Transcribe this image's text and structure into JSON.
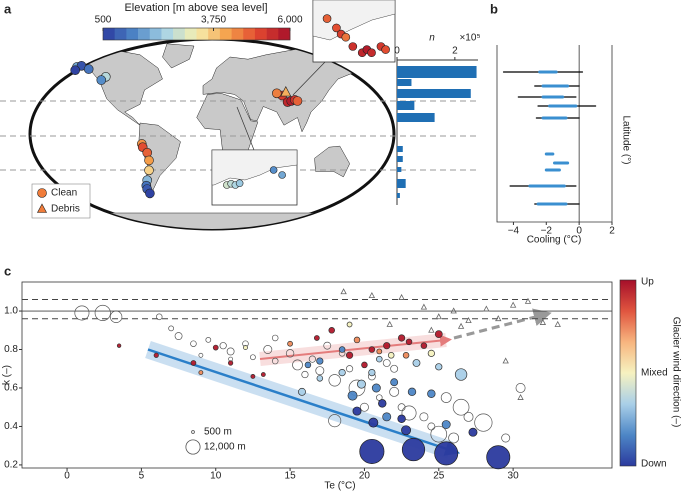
{
  "panel_labels": [
    "a",
    "b",
    "c"
  ],
  "chart_data": [
    {
      "type": "map",
      "title": "Elevation [m above sea level]",
      "clim": [
        500,
        6000
      ],
      "cticks": [
        500,
        {
          "value": 3750,
          "label": "3,750"
        },
        {
          "value": 6000,
          "label": "6,000"
        }
      ],
      "series": [
        {
          "name": "Clean",
          "marker": "circle",
          "inset": "world",
          "x": [
            -150,
            -145,
            -137,
            -152,
            -118,
            -123,
            78,
            84,
            88,
            92,
            95,
            72,
            -78,
            -77,
            -72,
            -70,
            -70,
            -72,
            -73,
            -72,
            -69
          ],
          "y": [
            61,
            62,
            59,
            58,
            52,
            49,
            35,
            29,
            30,
            31,
            30,
            37,
            -9,
            -12,
            -17,
            -24,
            -33,
            -42,
            -47,
            -50,
            -54
          ],
          "elevation": [
            1800,
            800,
            1200,
            600,
            2500,
            1500,
            5200,
            5600,
            5800,
            5400,
            4800,
            4500,
            4300,
            5000,
            4800,
            4200,
            3600,
            2000,
            1200,
            900,
            600
          ]
        },
        {
          "name": "Debris",
          "marker": "triangle",
          "inset": "world",
          "x": [
            82
          ],
          "y": [
            38
          ],
          "elevation": [
            4000
          ]
        },
        {
          "marker": "circle",
          "inset": "asia",
          "x": [
            71,
            75,
            77,
            79,
            82,
            86,
            88,
            90,
            94,
            96
          ],
          "y": [
            39,
            36,
            34,
            33,
            30,
            28,
            29,
            28,
            30,
            29
          ],
          "elevation": [
            4800,
            5000,
            5200,
            4600,
            5400,
            5600,
            5800,
            5500,
            5300,
            5000
          ]
        },
        {
          "marker": "circle",
          "inset": "europe",
          "x": [
            7,
            9,
            11,
            13,
            29,
            33
          ],
          "y": [
            46,
            46.5,
            46,
            46.7,
            52,
            50
          ],
          "elevation": [
            2800,
            2600,
            2400,
            2200,
            1500,
            1800
          ]
        }
      ]
    },
    {
      "type": "barh",
      "xlabel": "n",
      "x_multiplier": "×10⁵",
      "xlim": [
        0,
        2.8
      ],
      "xticks": [
        0,
        2
      ],
      "color": "#1f6fb4",
      "categories": [
        null,
        null,
        null,
        null,
        null,
        null,
        null,
        null,
        null,
        null
      ],
      "values": [
        2.75,
        0.5,
        2.55,
        0.6,
        1.3,
        0.2,
        0.2,
        0.15,
        0.3,
        0.1
      ]
    },
    {
      "type": "range",
      "xlabel": "Cooling (°C)",
      "ylabel": "Latitude (°)",
      "xlim": [
        -5,
        2
      ],
      "xticks": [
        {
          "value": -4,
          "label": "−4"
        },
        {
          "value": -2,
          "label": "−2"
        },
        0,
        2
      ],
      "series": [
        {
          "color": "#000000",
          "low": [
            -4.6,
            -2.7,
            -3.7,
            -2.5,
            -2.6,
            null,
            null,
            null,
            -4.2,
            -2.7
          ],
          "high": [
            0.2,
            0,
            -0.2,
            1.0,
            0,
            null,
            null,
            null,
            -0.2,
            0
          ]
        },
        {
          "color": "#3a8fd0",
          "low": [
            -2.4,
            -2.2,
            -2.2,
            -1.8,
            -2.2,
            -2.0,
            -1.5,
            -2.0,
            -3.0,
            -2.5
          ],
          "high": [
            -1.4,
            -0.7,
            -1.0,
            -0.2,
            -0.8,
            -1.6,
            -0.7,
            -1.2,
            -0.9,
            -0.8
          ]
        }
      ]
    },
    {
      "type": "scatter",
      "xlabel": "Te (°C)",
      "ylabel": "k (–)",
      "xlim": [
        -3.03,
        36.65
      ],
      "ylim": [
        0.184,
        1.151
      ],
      "xticks": [
        0,
        5,
        10,
        15,
        20,
        25,
        30
      ],
      "yticks": [
        0.2,
        0.4,
        0.6,
        0.8,
        {
          "value": 1,
          "label": "1.0"
        }
      ],
      "reference_lines": [
        1.06,
        1.0,
        0.96
      ],
      "reference_styles": [
        "dashed",
        "solid",
        "dashed"
      ],
      "colorbar": {
        "title": "Glacier wind direction (–)",
        "labels": [
          "Up",
          "Mixed",
          "Down"
        ],
        "colors": [
          "#a50f2a",
          "#e0553f",
          "#f7b57f",
          "#f6f2c0",
          "#a9cfe8",
          "#4d86c6",
          "#2b3a9e"
        ]
      },
      "size_legend": {
        "values": [
          500,
          12000
        ],
        "value_labels": [
          "500 m",
          "12,000 m"
        ]
      },
      "series": [
        {
          "marker": "circle",
          "color": "none",
          "edgecolor": "#555555",
          "x": [
            1,
            2.4,
            3.3,
            6.2,
            7,
            7.5,
            8.5,
            9.5,
            10.5,
            11,
            12,
            12.5,
            13.5,
            14,
            15,
            15.5,
            16.5,
            17,
            17.5,
            18,
            19,
            19.5,
            20.5,
            21,
            22,
            22.5,
            23,
            24,
            24.5,
            25,
            26,
            26.5,
            27,
            28,
            29.5,
            30.5,
            9,
            11,
            14,
            16,
            18.5,
            20,
            22,
            18,
            21.5,
            25.5
          ],
          "y": [
            0.99,
            0.99,
            0.97,
            0.97,
            0.91,
            0.87,
            0.83,
            0.85,
            0.82,
            0.79,
            0.83,
            0.76,
            0.8,
            0.74,
            0.78,
            0.72,
            0.75,
            0.69,
            0.82,
            0.64,
            0.7,
            0.6,
            0.66,
            0.55,
            0.58,
            0.5,
            0.47,
            0.45,
            0.4,
            0.36,
            0.34,
            0.5,
            0.45,
            0.42,
            0.34,
            0.6,
            0.77,
            0.75,
            0.86,
            0.67,
            0.78,
            0.5,
            0.7,
            0.43,
            0.73,
            0.55
          ],
          "size": [
            12000,
            14000,
            8000,
            2000,
            1500,
            3000,
            2000,
            1500,
            2500,
            3000,
            2000,
            1500,
            4000,
            2000,
            3500,
            6000,
            2500,
            4000,
            3000,
            8000,
            2500,
            15000,
            3000,
            2000,
            5000,
            3000,
            12000,
            4000,
            3000,
            15000,
            6000,
            15000,
            5000,
            18000,
            4000,
            5000,
            1000,
            1000,
            2000,
            2500,
            2000,
            4000,
            3000,
            9000,
            3000,
            6000
          ]
        },
        {
          "marker": "circle",
          "color": "#b2182b",
          "edgecolor": "#333333",
          "x": [
            3.5,
            6,
            8.5,
            10,
            11,
            13.2,
            16.8,
            17.8,
            19,
            20.5,
            21.5,
            22.5,
            23,
            24,
            25,
            20,
            12.5
          ],
          "y": [
            0.82,
            0.77,
            0.73,
            0.81,
            0.73,
            0.67,
            0.86,
            0.9,
            0.77,
            0.8,
            0.82,
            0.86,
            0.84,
            0.82,
            0.88,
            0.72,
            0.66
          ],
          "size": [
            800,
            1200,
            1500,
            1500,
            1200,
            1000,
            1500,
            2000,
            2500,
            2000,
            2500,
            2500,
            2000,
            2000,
            3000,
            2000,
            1000
          ]
        },
        {
          "marker": "circle",
          "color": "#ee8a5a",
          "edgecolor": "#333333",
          "x": [
            9,
            15,
            19.5,
            21,
            22.8
          ],
          "y": [
            0.68,
            0.83,
            0.85,
            0.79,
            0.77
          ],
          "size": [
            1000,
            1500,
            2000,
            1500,
            2000
          ]
        },
        {
          "marker": "circle",
          "color": "#f6f2c0",
          "edgecolor": "#333333",
          "x": [
            12,
            19,
            21.8,
            24.5
          ],
          "y": [
            0.81,
            0.93,
            0.77,
            0.78
          ],
          "size": [
            1000,
            1500,
            2000,
            2500
          ]
        },
        {
          "marker": "circle",
          "color": "#a9cfe8",
          "edgecolor": "#333333",
          "x": [
            15.8,
            18.5,
            19.8,
            21,
            23.5,
            26.5,
            20.5,
            17,
            25
          ],
          "y": [
            0.58,
            0.68,
            0.62,
            0.75,
            0.73,
            0.67,
            0.68,
            0.65,
            0.71
          ],
          "size": [
            3000,
            2500,
            4000,
            2000,
            3000,
            8000,
            2500,
            2000,
            2500
          ]
        },
        {
          "marker": "circle",
          "color": "#4d86c6",
          "edgecolor": "#333333",
          "x": [
            17,
            18.5,
            19.2,
            20.8,
            22,
            23.2,
            24.5,
            16.2,
            21.5,
            25.5
          ],
          "y": [
            0.74,
            0.8,
            0.56,
            0.6,
            0.63,
            0.58,
            0.57,
            0.72,
            0.45,
            0.41
          ],
          "size": [
            2500,
            2000,
            5000,
            4000,
            3000,
            3500,
            3500,
            2000,
            4000,
            4000
          ]
        },
        {
          "marker": "circle",
          "color": "#2b3a9e",
          "edgecolor": "#222222",
          "x": [
            19.5,
            20.6,
            22.5,
            21.2,
            22.8,
            27.3,
            20.5,
            23.3,
            25.5,
            29
          ],
          "y": [
            0.48,
            0.42,
            0.44,
            0.52,
            0.38,
            0.37,
            0.27,
            0.28,
            0.26,
            0.24
          ],
          "size": [
            4000,
            5000,
            3500,
            3500,
            5000,
            4000,
            35000,
            30000,
            32000,
            32000
          ]
        },
        {
          "marker": "triangle",
          "color": "none",
          "edgecolor": "#666666",
          "x": [
            18.6,
            20.5,
            22.5,
            24,
            25,
            26,
            27,
            28.2,
            29,
            30,
            31,
            32,
            26.5,
            24.5,
            21.7,
            30.5,
            29.5,
            33
          ],
          "y": [
            1.1,
            1.08,
            1.07,
            1.02,
            0.97,
            1.0,
            0.95,
            1.01,
            0.96,
            1.03,
            1.05,
            0.94,
            0.92,
            0.9,
            0.93,
            0.55,
            0.74,
            0.93
          ]
        }
      ]
    }
  ]
}
